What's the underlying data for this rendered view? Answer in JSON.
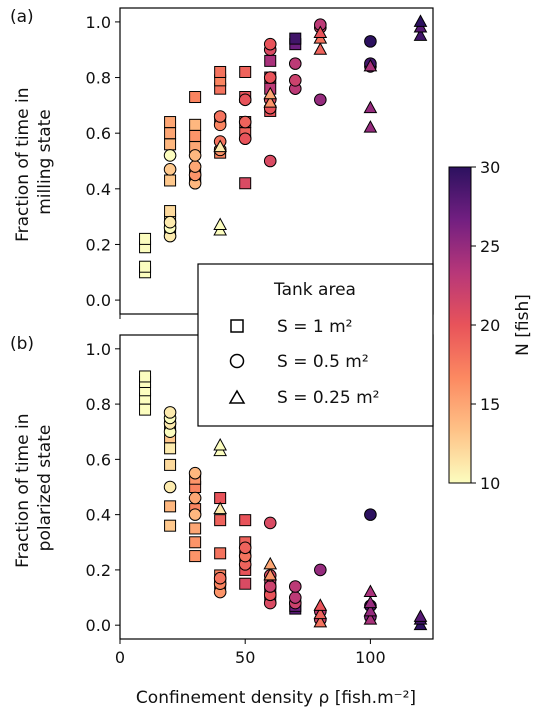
{
  "panels": [
    {
      "panel_label": "(a)",
      "ylabel_lines": [
        "Fraction of time in",
        "milling state"
      ],
      "ylabel_color": "#e8735a"
    },
    {
      "panel_label": "(b)",
      "ylabel_lines": [
        "Fraction of time in",
        "polarized state"
      ],
      "ylabel_color": "#6f96e0"
    }
  ],
  "xlabel": "Confinement density ρ [fish.m⁻²]",
  "legend": {
    "title": "Tank area",
    "entries": [
      {
        "marker": "square",
        "label": "S = 1 m²"
      },
      {
        "marker": "circle",
        "label": "S = 0.5 m²"
      },
      {
        "marker": "triangle",
        "label": "S = 0.25 m²"
      }
    ]
  },
  "colorbar": {
    "label": "N [fish]",
    "min": 10,
    "max": 30,
    "ticks": [
      10,
      15,
      20,
      25,
      30
    ],
    "colormap": "magma_r",
    "stops": [
      "#fcfdbf",
      "#fec287",
      "#fc8961",
      "#e8535a",
      "#b73779",
      "#721f81",
      "#2c115f"
    ]
  },
  "chart_data": [
    {
      "type": "scatter",
      "panel": "(a)",
      "xlim": [
        0,
        125
      ],
      "ylim": [
        -0.05,
        1.05
      ],
      "xticks": [
        0,
        50,
        100
      ],
      "yticks": [
        "0.0",
        "0.2",
        "0.4",
        "0.6",
        "0.8",
        "1.0"
      ],
      "encoding": {
        "x": "confinement density",
        "y": "fraction of time in milling state",
        "color": "N [fish]",
        "marker": "tank area"
      },
      "series": [
        {
          "marker": "square",
          "points": [
            {
              "x": 10,
              "y": 0.1,
              "n": 10
            },
            {
              "x": 10,
              "y": 0.12,
              "n": 10
            },
            {
              "x": 10,
              "y": 0.19,
              "n": 10
            },
            {
              "x": 10,
              "y": 0.22,
              "n": 10
            },
            {
              "x": 20,
              "y": 0.26,
              "n": 10
            },
            {
              "x": 20,
              "y": 0.29,
              "n": 11
            },
            {
              "x": 20,
              "y": 0.32,
              "n": 12
            },
            {
              "x": 20,
              "y": 0.43,
              "n": 13
            },
            {
              "x": 20,
              "y": 0.56,
              "n": 14
            },
            {
              "x": 20,
              "y": 0.6,
              "n": 15
            },
            {
              "x": 20,
              "y": 0.64,
              "n": 15
            },
            {
              "x": 30,
              "y": 0.44,
              "n": 15
            },
            {
              "x": 30,
              "y": 0.45,
              "n": 16
            },
            {
              "x": 30,
              "y": 0.55,
              "n": 15
            },
            {
              "x": 30,
              "y": 0.59,
              "n": 16
            },
            {
              "x": 30,
              "y": 0.63,
              "n": 14
            },
            {
              "x": 30,
              "y": 0.73,
              "n": 17
            },
            {
              "x": 40,
              "y": 0.53,
              "n": 17
            },
            {
              "x": 40,
              "y": 0.65,
              "n": 18
            },
            {
              "x": 40,
              "y": 0.76,
              "n": 18
            },
            {
              "x": 40,
              "y": 0.79,
              "n": 17
            },
            {
              "x": 40,
              "y": 0.82,
              "n": 18
            },
            {
              "x": 50,
              "y": 0.42,
              "n": 21
            },
            {
              "x": 50,
              "y": 0.6,
              "n": 19
            },
            {
              "x": 50,
              "y": 0.64,
              "n": 19
            },
            {
              "x": 50,
              "y": 0.73,
              "n": 20
            },
            {
              "x": 50,
              "y": 0.82,
              "n": 19
            },
            {
              "x": 60,
              "y": 0.68,
              "n": 20
            },
            {
              "x": 60,
              "y": 0.76,
              "n": 23
            },
            {
              "x": 60,
              "y": 0.8,
              "n": 22
            },
            {
              "x": 60,
              "y": 0.86,
              "n": 24
            },
            {
              "x": 70,
              "y": 0.92,
              "n": 27
            },
            {
              "x": 70,
              "y": 0.94,
              "n": 29
            }
          ]
        },
        {
          "marker": "circle",
          "points": [
            {
              "x": 20,
              "y": 0.23,
              "n": 11
            },
            {
              "x": 20,
              "y": 0.26,
              "n": 10
            },
            {
              "x": 20,
              "y": 0.28,
              "n": 11
            },
            {
              "x": 20,
              "y": 0.47,
              "n": 13
            },
            {
              "x": 20,
              "y": 0.52,
              "n": 10
            },
            {
              "x": 30,
              "y": 0.42,
              "n": 14
            },
            {
              "x": 30,
              "y": 0.45,
              "n": 16
            },
            {
              "x": 30,
              "y": 0.48,
              "n": 15
            },
            {
              "x": 30,
              "y": 0.52,
              "n": 14
            },
            {
              "x": 40,
              "y": 0.54,
              "n": 16
            },
            {
              "x": 40,
              "y": 0.57,
              "n": 18
            },
            {
              "x": 40,
              "y": 0.63,
              "n": 17
            },
            {
              "x": 40,
              "y": 0.66,
              "n": 18
            },
            {
              "x": 50,
              "y": 0.58,
              "n": 20
            },
            {
              "x": 50,
              "y": 0.64,
              "n": 19
            },
            {
              "x": 50,
              "y": 0.72,
              "n": 20
            },
            {
              "x": 60,
              "y": 0.5,
              "n": 21
            },
            {
              "x": 60,
              "y": 0.69,
              "n": 20
            },
            {
              "x": 60,
              "y": 0.72,
              "n": 21
            },
            {
              "x": 60,
              "y": 0.8,
              "n": 20
            },
            {
              "x": 60,
              "y": 0.9,
              "n": 21
            },
            {
              "x": 60,
              "y": 0.92,
              "n": 20
            },
            {
              "x": 70,
              "y": 0.76,
              "n": 23
            },
            {
              "x": 70,
              "y": 0.79,
              "n": 22
            },
            {
              "x": 70,
              "y": 0.85,
              "n": 23
            },
            {
              "x": 80,
              "y": 0.72,
              "n": 25
            },
            {
              "x": 80,
              "y": 0.98,
              "n": 22
            },
            {
              "x": 80,
              "y": 0.99,
              "n": 23
            },
            {
              "x": 100,
              "y": 0.84,
              "n": 26
            },
            {
              "x": 100,
              "y": 0.85,
              "n": 29
            },
            {
              "x": 100,
              "y": 0.93,
              "n": 30
            }
          ]
        },
        {
          "marker": "triangle",
          "points": [
            {
              "x": 40,
              "y": 0.25,
              "n": 10
            },
            {
              "x": 40,
              "y": 0.27,
              "n": 10
            },
            {
              "x": 40,
              "y": 0.55,
              "n": 11
            },
            {
              "x": 60,
              "y": 0.71,
              "n": 16
            },
            {
              "x": 60,
              "y": 0.74,
              "n": 15
            },
            {
              "x": 80,
              "y": 0.9,
              "n": 19
            },
            {
              "x": 80,
              "y": 0.94,
              "n": 18
            },
            {
              "x": 80,
              "y": 0.96,
              "n": 20
            },
            {
              "x": 100,
              "y": 0.62,
              "n": 25
            },
            {
              "x": 100,
              "y": 0.69,
              "n": 25
            },
            {
              "x": 100,
              "y": 0.84,
              "n": 24
            },
            {
              "x": 120,
              "y": 0.95,
              "n": 29
            },
            {
              "x": 120,
              "y": 0.98,
              "n": 28
            },
            {
              "x": 120,
              "y": 1.0,
              "n": 30
            }
          ]
        }
      ]
    },
    {
      "type": "scatter",
      "panel": "(b)",
      "xlim": [
        0,
        125
      ],
      "ylim": [
        -0.05,
        1.05
      ],
      "xticks": [
        0,
        50,
        100
      ],
      "yticks": [
        "0.0",
        "0.2",
        "0.4",
        "0.6",
        "0.8",
        "1.0"
      ],
      "encoding": {
        "x": "confinement density",
        "y": "fraction of time in polarized state",
        "color": "N [fish]",
        "marker": "tank area"
      },
      "series": [
        {
          "marker": "square",
          "points": [
            {
              "x": 10,
              "y": 0.78,
              "n": 10
            },
            {
              "x": 10,
              "y": 0.82,
              "n": 10
            },
            {
              "x": 10,
              "y": 0.85,
              "n": 10
            },
            {
              "x": 10,
              "y": 0.88,
              "n": 10
            },
            {
              "x": 10,
              "y": 0.9,
              "n": 10
            },
            {
              "x": 20,
              "y": 0.36,
              "n": 13
            },
            {
              "x": 20,
              "y": 0.43,
              "n": 14
            },
            {
              "x": 20,
              "y": 0.58,
              "n": 12
            },
            {
              "x": 20,
              "y": 0.64,
              "n": 11
            },
            {
              "x": 20,
              "y": 0.68,
              "n": 13
            },
            {
              "x": 20,
              "y": 0.72,
              "n": 14
            },
            {
              "x": 30,
              "y": 0.25,
              "n": 16
            },
            {
              "x": 30,
              "y": 0.3,
              "n": 16
            },
            {
              "x": 30,
              "y": 0.35,
              "n": 15
            },
            {
              "x": 30,
              "y": 0.42,
              "n": 17
            },
            {
              "x": 30,
              "y": 0.5,
              "n": 17
            },
            {
              "x": 30,
              "y": 0.53,
              "n": 16
            },
            {
              "x": 40,
              "y": 0.15,
              "n": 18
            },
            {
              "x": 40,
              "y": 0.18,
              "n": 17
            },
            {
              "x": 40,
              "y": 0.26,
              "n": 18
            },
            {
              "x": 40,
              "y": 0.38,
              "n": 19
            },
            {
              "x": 40,
              "y": 0.46,
              "n": 20
            },
            {
              "x": 50,
              "y": 0.15,
              "n": 21
            },
            {
              "x": 50,
              "y": 0.2,
              "n": 20
            },
            {
              "x": 50,
              "y": 0.25,
              "n": 19
            },
            {
              "x": 50,
              "y": 0.3,
              "n": 19
            },
            {
              "x": 50,
              "y": 0.38,
              "n": 20
            },
            {
              "x": 60,
              "y": 0.1,
              "n": 23
            },
            {
              "x": 60,
              "y": 0.12,
              "n": 24
            },
            {
              "x": 60,
              "y": 0.15,
              "n": 22
            },
            {
              "x": 70,
              "y": 0.06,
              "n": 28
            },
            {
              "x": 70,
              "y": 0.07,
              "n": 27
            }
          ]
        },
        {
          "marker": "circle",
          "points": [
            {
              "x": 20,
              "y": 0.5,
              "n": 11
            },
            {
              "x": 20,
              "y": 0.7,
              "n": 10
            },
            {
              "x": 20,
              "y": 0.73,
              "n": 11
            },
            {
              "x": 20,
              "y": 0.75,
              "n": 10
            },
            {
              "x": 20,
              "y": 0.77,
              "n": 11
            },
            {
              "x": 30,
              "y": 0.4,
              "n": 14
            },
            {
              "x": 30,
              "y": 0.46,
              "n": 15
            },
            {
              "x": 30,
              "y": 0.55,
              "n": 14
            },
            {
              "x": 40,
              "y": 0.12,
              "n": 16
            },
            {
              "x": 40,
              "y": 0.15,
              "n": 17
            },
            {
              "x": 40,
              "y": 0.17,
              "n": 18
            },
            {
              "x": 50,
              "y": 0.22,
              "n": 19
            },
            {
              "x": 50,
              "y": 0.25,
              "n": 18
            },
            {
              "x": 50,
              "y": 0.28,
              "n": 19
            },
            {
              "x": 60,
              "y": 0.08,
              "n": 21
            },
            {
              "x": 60,
              "y": 0.11,
              "n": 20
            },
            {
              "x": 60,
              "y": 0.14,
              "n": 22
            },
            {
              "x": 60,
              "y": 0.18,
              "n": 21
            },
            {
              "x": 60,
              "y": 0.37,
              "n": 21
            },
            {
              "x": 70,
              "y": 0.08,
              "n": 22
            },
            {
              "x": 70,
              "y": 0.1,
              "n": 23
            },
            {
              "x": 70,
              "y": 0.14,
              "n": 23
            },
            {
              "x": 80,
              "y": 0.02,
              "n": 22
            },
            {
              "x": 80,
              "y": 0.05,
              "n": 23
            },
            {
              "x": 80,
              "y": 0.2,
              "n": 25
            },
            {
              "x": 100,
              "y": 0.03,
              "n": 26
            },
            {
              "x": 100,
              "y": 0.07,
              "n": 29
            },
            {
              "x": 100,
              "y": 0.4,
              "n": 30
            }
          ]
        },
        {
          "marker": "triangle",
          "points": [
            {
              "x": 40,
              "y": 0.42,
              "n": 11
            },
            {
              "x": 40,
              "y": 0.63,
              "n": 10
            },
            {
              "x": 40,
              "y": 0.65,
              "n": 10
            },
            {
              "x": 60,
              "y": 0.18,
              "n": 16
            },
            {
              "x": 60,
              "y": 0.22,
              "n": 15
            },
            {
              "x": 80,
              "y": 0.01,
              "n": 18
            },
            {
              "x": 80,
              "y": 0.04,
              "n": 19
            },
            {
              "x": 80,
              "y": 0.07,
              "n": 20
            },
            {
              "x": 100,
              "y": 0.02,
              "n": 24
            },
            {
              "x": 100,
              "y": 0.05,
              "n": 25
            },
            {
              "x": 100,
              "y": 0.08,
              "n": 25
            },
            {
              "x": 100,
              "y": 0.12,
              "n": 24
            },
            {
              "x": 120,
              "y": 0.0,
              "n": 30
            },
            {
              "x": 120,
              "y": 0.02,
              "n": 29
            },
            {
              "x": 120,
              "y": 0.03,
              "n": 28
            }
          ]
        }
      ]
    }
  ]
}
